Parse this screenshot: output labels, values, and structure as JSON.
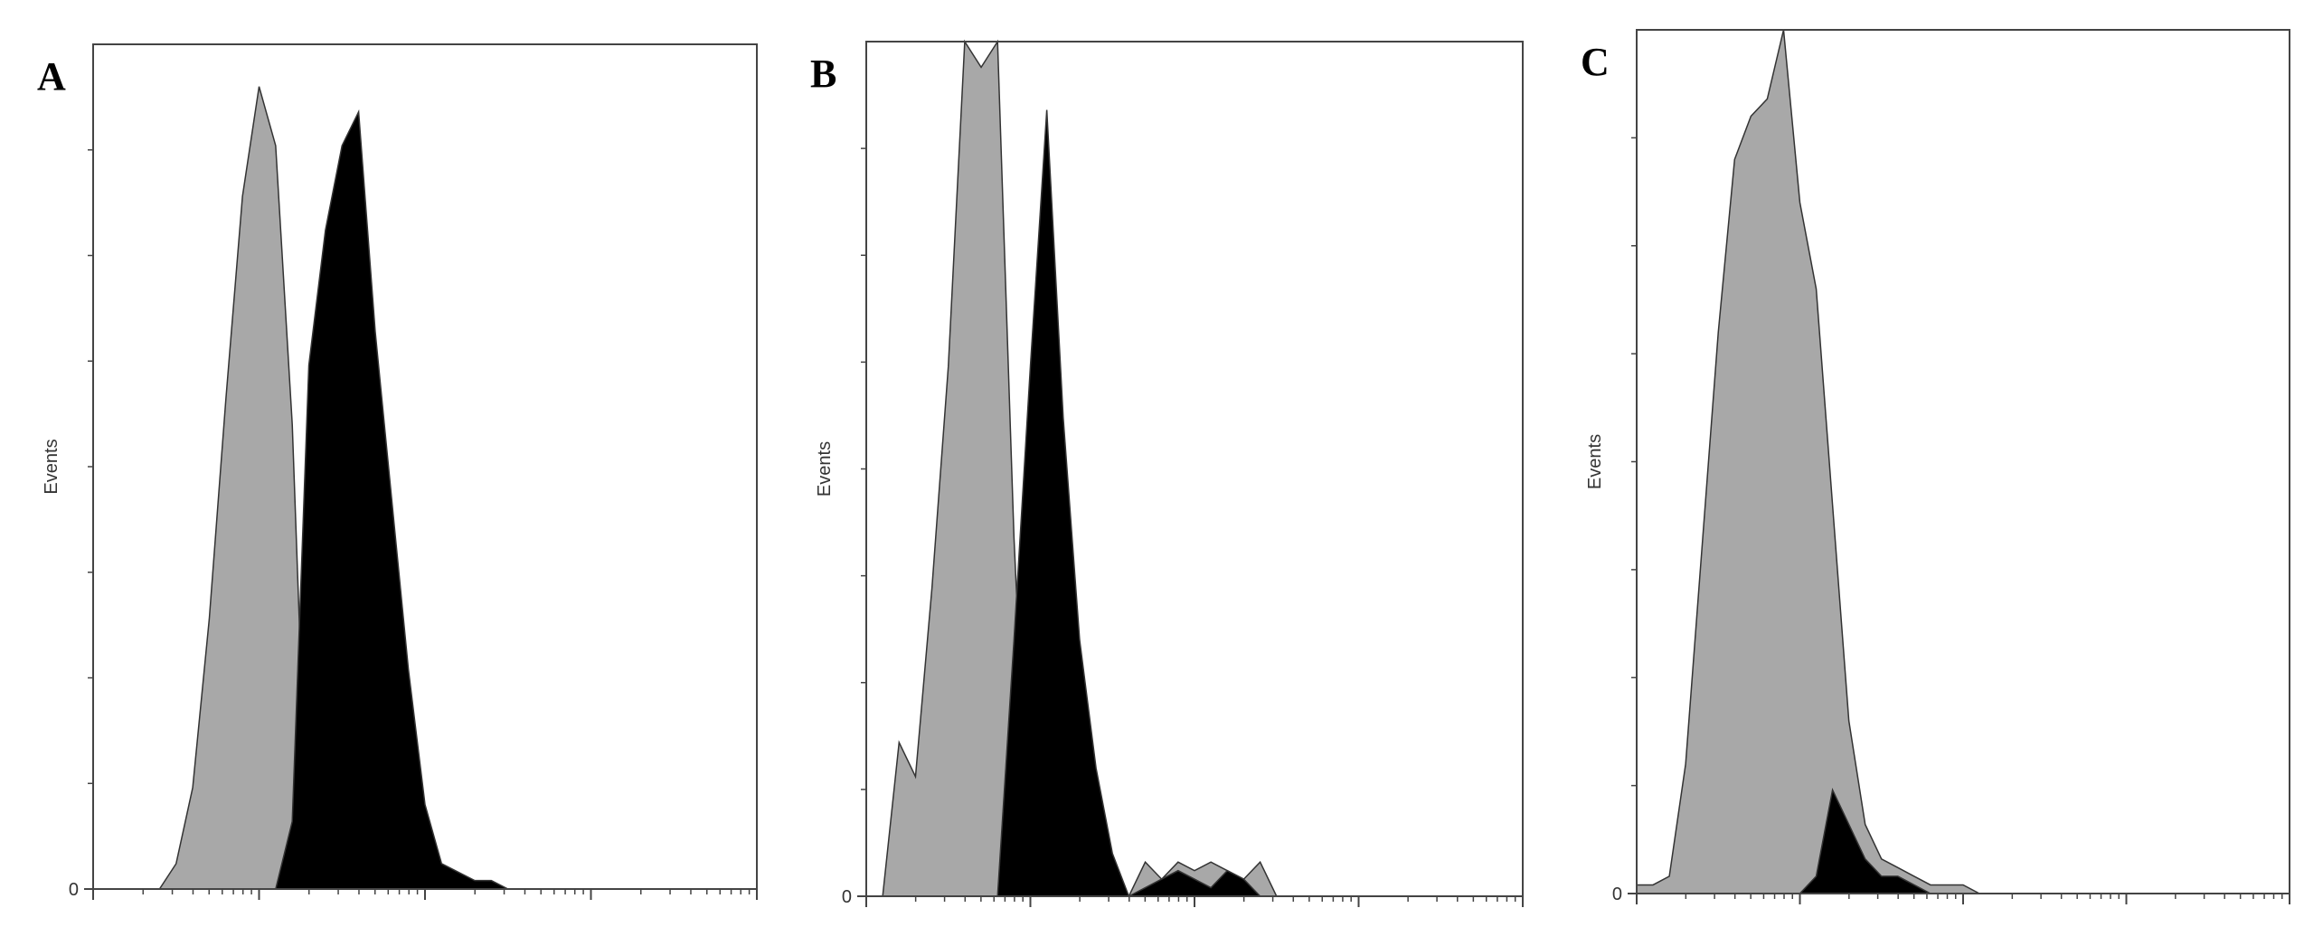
{
  "chart_data": [
    {
      "type": "area",
      "label": "A",
      "y_label": "Events",
      "x_scale": "log-decades",
      "x": [
        0,
        0.1,
        0.2,
        0.3,
        0.4,
        0.5,
        0.6,
        0.7,
        0.8,
        0.9,
        1,
        1.1,
        1.2,
        1.3,
        1.4,
        1.5,
        1.6,
        1.7,
        1.8,
        1.9,
        2,
        2.1,
        2.2,
        2.3,
        2.4,
        2.5,
        2.6,
        2.7,
        2.8,
        2.9,
        3,
        3.1,
        3.2,
        3.3,
        3.4,
        3.5,
        3.6,
        3.7,
        3.8,
        3.9,
        4
      ],
      "series": [
        {
          "color": "#a8a8a8",
          "values": [
            0,
            0,
            0,
            0,
            0,
            3,
            12,
            32,
            58,
            82,
            95,
            88,
            55,
            0,
            0,
            0,
            0,
            0,
            0,
            0,
            0,
            0,
            0,
            0,
            0,
            0,
            0,
            0,
            0,
            0,
            0,
            0,
            0,
            0,
            0,
            0,
            0,
            0,
            0,
            0,
            0
          ]
        },
        {
          "color": "#000000",
          "values": [
            0,
            0,
            0,
            0,
            0,
            0,
            0,
            0,
            0,
            0,
            0,
            0,
            8,
            62,
            78,
            88,
            92,
            66,
            46,
            26,
            10,
            3,
            2,
            1,
            1,
            0,
            0,
            0,
            0,
            0,
            0,
            0,
            0,
            0,
            0,
            0,
            0,
            0,
            0,
            0,
            0
          ]
        }
      ],
      "xlim": [
        0,
        4
      ],
      "xticks": [
        0,
        1,
        2,
        3,
        4
      ],
      "ylim": [
        0,
        100
      ],
      "yticks": [
        0
      ]
    },
    {
      "type": "area",
      "label": "B",
      "y_label": "Events",
      "x_scale": "log-decades",
      "x": [
        0,
        0.1,
        0.2,
        0.3,
        0.4,
        0.5,
        0.6,
        0.7,
        0.8,
        0.9,
        1,
        1.1,
        1.2,
        1.3,
        1.4,
        1.5,
        1.6,
        1.7,
        1.8,
        1.9,
        2,
        2.1,
        2.2,
        2.3,
        2.4,
        2.5,
        2.6,
        2.7,
        2.8,
        2.9,
        3,
        3.1,
        3.2,
        3.3,
        3.4,
        3.5,
        3.6,
        3.7,
        3.8,
        3.9,
        4
      ],
      "series": [
        {
          "color": "#a8a8a8",
          "values": [
            0,
            0,
            18,
            14,
            36,
            62,
            100,
            97,
            100,
            42,
            0,
            0,
            0,
            0,
            0,
            0,
            0,
            4,
            2,
            4,
            3,
            4,
            3,
            2,
            4,
            0,
            0,
            0,
            0,
            0,
            0,
            0,
            0,
            0,
            0,
            0,
            0,
            0,
            0,
            0,
            0
          ]
        },
        {
          "color": "#000000",
          "values": [
            0,
            0,
            0,
            0,
            0,
            0,
            0,
            0,
            0,
            30,
            62,
            92,
            56,
            30,
            15,
            5,
            0,
            1,
            2,
            3,
            2,
            1,
            3,
            2,
            0,
            0,
            0,
            0,
            0,
            0,
            0,
            0,
            0,
            0,
            0,
            0,
            0,
            0,
            0,
            0,
            0
          ]
        }
      ],
      "xlim": [
        0,
        4
      ],
      "xticks": [
        0,
        1,
        2,
        3,
        4
      ],
      "ylim": [
        0,
        100
      ],
      "yticks": [
        0
      ]
    },
    {
      "type": "area",
      "label": "C",
      "y_label": "Events",
      "x_scale": "log-decades",
      "x": [
        0,
        0.1,
        0.2,
        0.3,
        0.4,
        0.5,
        0.6,
        0.7,
        0.8,
        0.9,
        1,
        1.1,
        1.2,
        1.3,
        1.4,
        1.5,
        1.6,
        1.7,
        1.8,
        1.9,
        2,
        2.1,
        2.2,
        2.3,
        2.4,
        2.5,
        2.6,
        2.7,
        2.8,
        2.9,
        3,
        3.1,
        3.2,
        3.3,
        3.4,
        3.5,
        3.6,
        3.7,
        3.8,
        3.9,
        4
      ],
      "series": [
        {
          "color": "#a8a8a8",
          "values": [
            1,
            1,
            2,
            15,
            40,
            65,
            85,
            90,
            92,
            100,
            80,
            70,
            45,
            20,
            8,
            4,
            3,
            2,
            1,
            1,
            1,
            0,
            0,
            0,
            0,
            0,
            0,
            0,
            0,
            0,
            0,
            0,
            0,
            0,
            0,
            0,
            0,
            0,
            0,
            0,
            0
          ]
        },
        {
          "color": "#000000",
          "values": [
            0,
            0,
            0,
            0,
            0,
            0,
            0,
            0,
            0,
            0,
            0,
            2,
            12,
            8,
            4,
            2,
            2,
            1,
            0,
            0,
            0,
            0,
            0,
            0,
            0,
            0,
            0,
            0,
            0,
            0,
            0,
            0,
            0,
            0,
            0,
            0,
            0,
            0,
            0,
            0,
            0
          ]
        }
      ],
      "xlim": [
        0,
        4
      ],
      "xticks": [
        0,
        1,
        2,
        3,
        4
      ],
      "ylim": [
        0,
        100
      ],
      "yticks": [
        0
      ]
    }
  ]
}
